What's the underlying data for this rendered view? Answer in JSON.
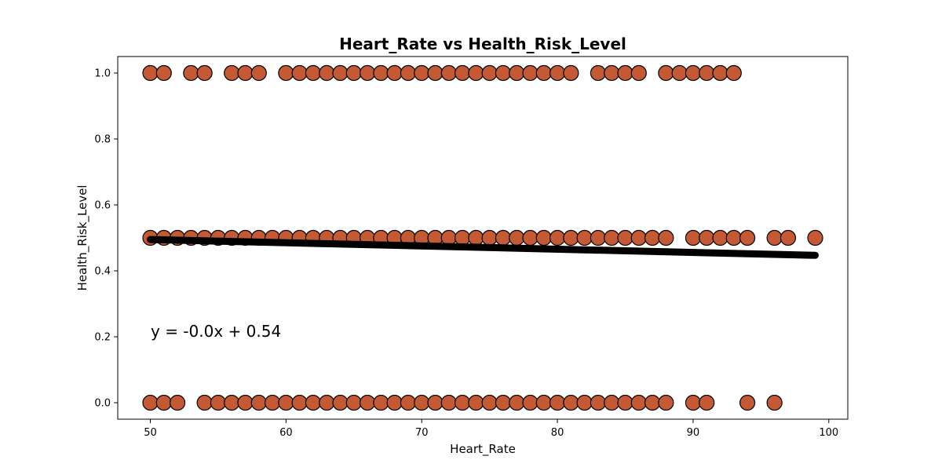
{
  "chart_data": {
    "type": "scatter",
    "title": "Heart_Rate vs Health_Risk_Level",
    "xlabel": "Heart_Rate",
    "ylabel": "Health_Risk_Level",
    "xlim": [
      47.6,
      101.4
    ],
    "ylim": [
      -0.05,
      1.05
    ],
    "xticks": [
      50,
      60,
      70,
      80,
      90,
      100
    ],
    "yticks": [
      0.0,
      0.2,
      0.4,
      0.6,
      0.8,
      1.0
    ],
    "xtick_labels": [
      "50",
      "60",
      "70",
      "80",
      "90",
      "100"
    ],
    "ytick_labels": [
      "0.0",
      "0.2",
      "0.4",
      "0.6",
      "0.8",
      "1.0"
    ],
    "grid": false,
    "marker_color": "#c45a35",
    "marker_edge_color": "#000000",
    "line_color": "#000000",
    "series": [
      {
        "values_by_level": [
          {
            "y": 1.0,
            "x": [
              50,
              51,
              53,
              54,
              56,
              57,
              58,
              60,
              61,
              62,
              63,
              64,
              65,
              66,
              67,
              68,
              69,
              70,
              71,
              72,
              73,
              74,
              75,
              76,
              77,
              78,
              79,
              80,
              81,
              83,
              84,
              85,
              86,
              88,
              89,
              90,
              91,
              92,
              93
            ]
          },
          {
            "y": 0.5,
            "x": [
              50,
              51,
              52,
              53,
              54,
              55,
              56,
              57,
              58,
              59,
              60,
              61,
              62,
              63,
              64,
              65,
              66,
              67,
              68,
              69,
              70,
              71,
              72,
              73,
              74,
              75,
              76,
              77,
              78,
              79,
              80,
              81,
              82,
              83,
              84,
              85,
              86,
              87,
              88,
              90,
              91,
              92,
              93,
              94,
              96,
              97,
              99
            ]
          },
          {
            "y": 0.0,
            "x": [
              50,
              51,
              52,
              54,
              55,
              56,
              57,
              58,
              59,
              60,
              61,
              62,
              63,
              64,
              65,
              66,
              67,
              68,
              69,
              70,
              71,
              72,
              73,
              74,
              75,
              76,
              77,
              78,
              79,
              80,
              81,
              82,
              83,
              84,
              85,
              86,
              87,
              88,
              90,
              91,
              94,
              96
            ]
          }
        ]
      }
    ],
    "regression": {
      "x_start": 50,
      "x_end": 99,
      "y_start": 0.495,
      "y_end": 0.447
    },
    "annotation": "y = -0.0x + 0.54"
  }
}
